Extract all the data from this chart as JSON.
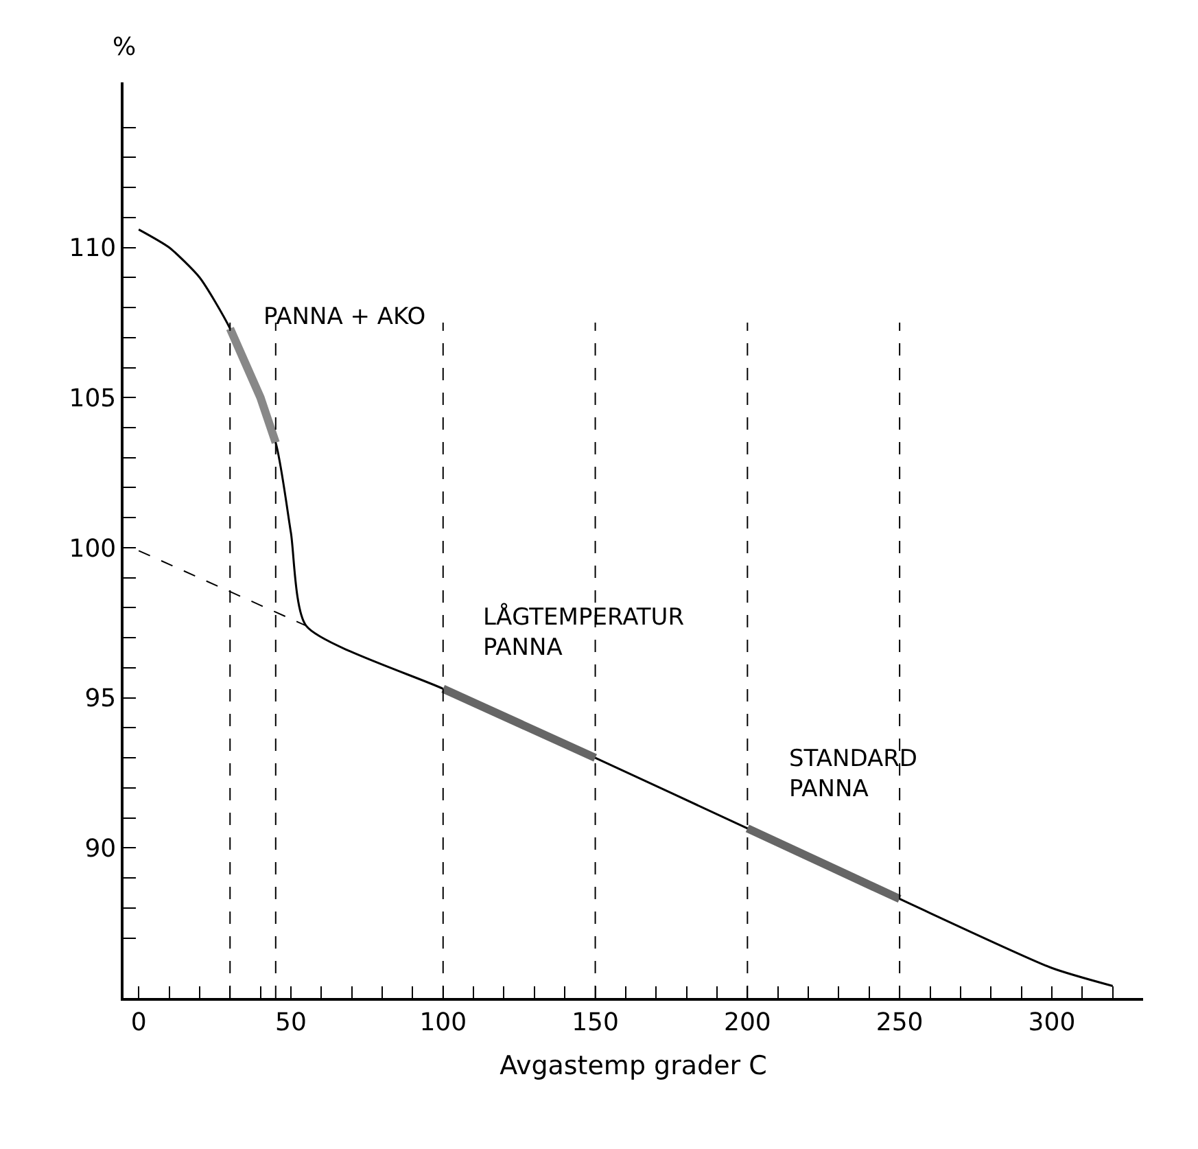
{
  "chart_data": {
    "type": "line",
    "xlabel": "Avgastemp grader C",
    "ylabel": "%",
    "xlim": [
      -5,
      330
    ],
    "ylim": [
      85,
      115.5
    ],
    "xticks": [
      0,
      {
        "value": 10,
        "label": null
      },
      {
        "value": 20,
        "label": null
      },
      {
        "value": 30,
        "label": null
      },
      {
        "value": 40,
        "label": null
      },
      50,
      {
        "value": 60,
        "label": null
      },
      {
        "value": 70,
        "label": null
      },
      {
        "value": 80,
        "label": null
      },
      {
        "value": 90,
        "label": null
      },
      100,
      {
        "value": 110,
        "label": null
      },
      {
        "value": 120,
        "label": null
      },
      {
        "value": 130,
        "label": null
      },
      {
        "value": 140,
        "label": null
      },
      150,
      {
        "value": 160,
        "label": null
      },
      {
        "value": 170,
        "label": null
      },
      {
        "value": 180,
        "label": null
      },
      {
        "value": 190,
        "label": null
      },
      200,
      {
        "value": 210,
        "label": null
      },
      {
        "value": 220,
        "label": null
      },
      {
        "value": 230,
        "label": null
      },
      {
        "value": 240,
        "label": null
      },
      250,
      {
        "value": 260,
        "label": null
      },
      {
        "value": 270,
        "label": null
      },
      {
        "value": 280,
        "label": null
      },
      {
        "value": 290,
        "label": null
      },
      300,
      {
        "value": 310,
        "label": null
      },
      {
        "value": 320,
        "label": null
      }
    ],
    "yticks": [
      {
        "value": 87,
        "label": null
      },
      {
        "value": 88,
        "label": null
      },
      {
        "value": 89,
        "label": null
      },
      90,
      {
        "value": 91,
        "label": null
      },
      {
        "value": 92,
        "label": null
      },
      {
        "value": 93,
        "label": null
      },
      {
        "value": 94,
        "label": null
      },
      95,
      {
        "value": 96,
        "label": null
      },
      {
        "value": 97,
        "label": null
      },
      {
        "value": 98,
        "label": null
      },
      {
        "value": 99,
        "label": null
      },
      100,
      {
        "value": 101,
        "label": null
      },
      {
        "value": 102,
        "label": null
      },
      {
        "value": 103,
        "label": null
      },
      {
        "value": 104,
        "label": null
      },
      105,
      {
        "value": 106,
        "label": null
      },
      {
        "value": 107,
        "label": null
      },
      {
        "value": 108,
        "label": null
      },
      {
        "value": 109,
        "label": null
      },
      110,
      {
        "value": 111,
        "label": null
      },
      {
        "value": 112,
        "label": null
      },
      {
        "value": 113,
        "label": null
      },
      {
        "value": 114,
        "label": null
      }
    ],
    "marker": "none",
    "series": [
      {
        "color": "#000000",
        "x": [
          0,
          10,
          20,
          30,
          45,
          50,
          55,
          100,
          150,
          200,
          250,
          300,
          320
        ],
        "values": [
          110.6,
          110.0,
          109.0,
          107.3,
          103.5,
          100.5,
          97.4,
          95.3,
          93.0,
          90.65,
          88.3,
          86.0,
          85.4
        ],
        "line_style": "solid"
      },
      {
        "color": "#000000",
        "x": [
          0,
          55
        ],
        "values": [
          99.9,
          97.4
        ],
        "line_style": "dashed"
      },
      {
        "color": "#888888",
        "x": [
          30,
          40,
          45
        ],
        "values": [
          107.3,
          105.0,
          103.5
        ],
        "line_style": "solid"
      },
      {
        "color": "#666666",
        "x": [
          100,
          150
        ],
        "values": [
          95.3,
          93.0
        ],
        "line_style": "solid"
      },
      {
        "color": "#666666",
        "x": [
          200,
          250
        ],
        "values": [
          90.65,
          88.3
        ],
        "line_style": "solid"
      }
    ],
    "ref_lines": [
      {
        "axis": "x",
        "value": 30,
        "line_style": "dashed"
      },
      {
        "axis": "x",
        "value": 45,
        "line_style": "dashed"
      },
      {
        "axis": "x",
        "value": 100,
        "line_style": "dashed"
      },
      {
        "axis": "x",
        "value": 150,
        "line_style": "dashed"
      },
      {
        "axis": "x",
        "value": 200,
        "line_style": "dashed"
      },
      {
        "axis": "x",
        "value": 250,
        "line_style": "dashed"
      }
    ],
    "annotations": [
      "PANNA + AKO",
      "LÅGTEMPERATUR\nPANNA",
      "STANDARD\nPANNA"
    ]
  }
}
